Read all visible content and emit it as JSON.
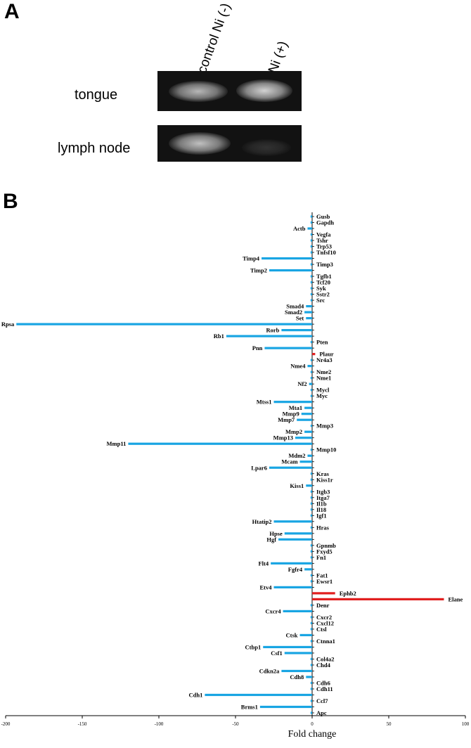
{
  "panel_a": {
    "letter": "A",
    "lanes": [
      "control Ni (-)",
      "Ni (+)"
    ],
    "rows": [
      {
        "label": "tongue",
        "intensity": [
          0.75,
          0.9
        ]
      },
      {
        "label": "lymph node",
        "intensity": [
          0.8,
          0.05
        ]
      }
    ]
  },
  "panel_b": {
    "letter": "B"
  },
  "chart_data": {
    "type": "bar",
    "orientation": "horizontal",
    "xlabel": "Fold change",
    "xlim": [
      -200,
      100
    ],
    "xticks": [
      -200,
      -150,
      -100,
      -50,
      0,
      50,
      100
    ],
    "colors": {
      "down": "#19a5e3",
      "up": "#e11f1f"
    },
    "categories": [
      "Gusb",
      "Gapdh",
      "Actb",
      "Vegfa",
      "Tshr",
      "Trp53",
      "Tnfsf10",
      "Timp4",
      "Timp3",
      "Timp2",
      "Tgfb1",
      "Tcf20",
      "Syk",
      "Sstr2",
      "Src",
      "Smad4",
      "Smad2",
      "Set",
      "Rpsa",
      "Rorb",
      "Rb1",
      "Pten",
      "Pnn",
      "Plaur",
      "Nr4a3",
      "Nme4",
      "Nme2",
      "Nme1",
      "Nf2",
      "Mycl",
      "Myc",
      "Mtss1",
      "Mta1",
      "Mmp9",
      "Mmp7",
      "Mmp3",
      "Mmp2",
      "Mmp13",
      "Mmp11",
      "Mmp10",
      "Mdm2",
      "Mcam",
      "Lpar6",
      "Kras",
      "Kiss1r",
      "Kiss1",
      "Itgb3",
      "Itga7",
      "Il1b",
      "Il18",
      "Igf1",
      "Htatip2",
      "Hras",
      "Hpse",
      "Hgf",
      "Gpnmb",
      "Fxyd5",
      "Fn1",
      "Flt4",
      "Fgfr4",
      "Fat1",
      "Ewsr1",
      "Etv4",
      "Ephb2",
      "Elane",
      "Denr",
      "Cxcr4",
      "Cxcr2",
      "Cxcl12",
      "Ctsl",
      "Ctsk",
      "Ctnna1",
      "Ctbp1",
      "Csf1",
      "Col4a2",
      "Chd4",
      "Cdkn2a",
      "Cdh8",
      "Cdh6",
      "Cdh11",
      "Cdh1",
      "Ccl7",
      "Brms1",
      "Apc"
    ],
    "values": [
      -1,
      -1,
      -3,
      -1,
      -1,
      -1,
      -1,
      -33,
      -1,
      -28,
      -1,
      -1,
      -1,
      -1,
      -1,
      -4,
      -5,
      -4,
      -193,
      -20,
      -56,
      -1,
      -31,
      2,
      -1,
      -3,
      -1,
      -1,
      -2,
      -1,
      -1,
      -25,
      -5,
      -7,
      -10,
      -1,
      -5,
      -11,
      -120,
      -1,
      -3,
      -8,
      -28,
      -1,
      -1,
      -4,
      -1,
      -1,
      -1,
      -1,
      -1,
      -25,
      -1,
      -18,
      -22,
      -1,
      -1,
      -1,
      -27,
      -5,
      -1,
      -1,
      -25,
      15,
      86,
      -1,
      -19,
      -1,
      -1,
      -1,
      -8,
      -1,
      -32,
      -18,
      -1,
      -1,
      -20,
      -4,
      -1,
      -1,
      -70,
      -1,
      -34,
      -1
    ]
  }
}
